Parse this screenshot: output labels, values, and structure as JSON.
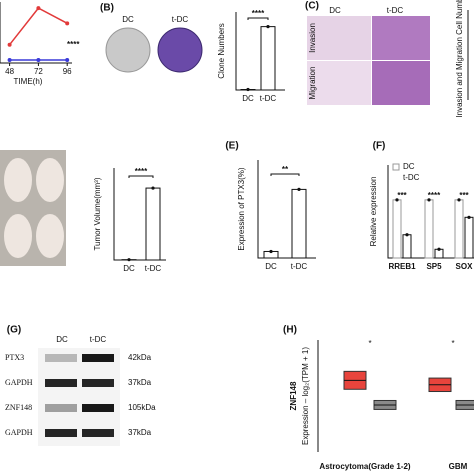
{
  "panel_a": {
    "type": "line",
    "x": [
      48,
      72,
      96
    ],
    "xlim": [
      40,
      100
    ],
    "xticks": [
      48,
      72,
      96
    ],
    "ylim": [
      0,
      2
    ],
    "xlabel": "TIME(h)",
    "significance": "****",
    "series": [
      {
        "color": "#e23a3a",
        "values": [
          0.6,
          1.8,
          1.3
        ]
      },
      {
        "color": "#3a3ad8",
        "values": [
          0.1,
          0.1,
          0.1
        ]
      }
    ]
  },
  "panel_b": {
    "label": "(B)",
    "image_labels": [
      "DC",
      "t-DC"
    ],
    "chart": {
      "type": "bar",
      "ylabel": "Clone Numbers",
      "categories": [
        "DC",
        "t-DC"
      ],
      "values": [
        1,
        130
      ],
      "ylim": [
        0,
        160
      ],
      "significance": "****"
    }
  },
  "panel_c": {
    "label": "(C)",
    "column_labels": [
      "DC",
      "t-DC"
    ],
    "row_labels": [
      "Invasion",
      "Migration"
    ],
    "ylabel": "Invasion and Migration Cell Numbers"
  },
  "panel_d": {
    "chart": {
      "type": "bar",
      "ylabel": "Tumor Volume(mm³)",
      "categories": [
        "DC",
        "t-DC"
      ],
      "values": [
        2,
        430
      ],
      "ylim": [
        0,
        550
      ],
      "significance": "****"
    }
  },
  "panel_e": {
    "label": "(E)",
    "chart": {
      "type": "bar",
      "ylabel": "Expression of PTX3(%)",
      "categories": [
        "DC",
        "t-DC"
      ],
      "values": [
        10,
        105
      ],
      "ylim": [
        0,
        150
      ],
      "significance": "**"
    }
  },
  "panel_f": {
    "label": "(F)",
    "chart": {
      "type": "grouped_bar",
      "ylabel": "Relative expression",
      "categories": [
        "RREB1",
        "SP5",
        "SOX"
      ],
      "series": [
        {
          "name": "DC",
          "color": "#ffffff",
          "values": [
            1,
            1,
            1
          ]
        },
        {
          "name": "t-DC",
          "color": "#ffffff",
          "values": [
            0.4,
            0.15,
            0.7
          ]
        }
      ],
      "ylim": [
        0,
        1.6
      ],
      "significance": [
        "***",
        "****",
        "***"
      ]
    }
  },
  "panel_g": {
    "label": "(G)",
    "columns": [
      "DC",
      "t-DC"
    ],
    "rows": [
      {
        "protein": "PTX3",
        "size": "42kDa"
      },
      {
        "protein": "GAPDH",
        "size": "37kDa"
      },
      {
        "protein": "ZNF148",
        "size": "105kDa"
      },
      {
        "protein": "GAPDH",
        "size": "37kDa"
      }
    ]
  },
  "panel_h": {
    "label": "(H)",
    "type": "box",
    "ylabel": "ZNF148",
    "axis_note": "Expression – log₂(TPM + 1)",
    "ylim": [
      0,
      5
    ],
    "groups": [
      "Astrocytoma(Grade 1-2)",
      "GBM"
    ],
    "significance": [
      "*",
      "*"
    ],
    "boxes": [
      {
        "color": "#e8443c",
        "q1": 2.8,
        "median": 3.2,
        "q3": 3.6
      },
      {
        "color": "#8a8a8a",
        "q1": 1.9,
        "median": 2.1,
        "q3": 2.3
      },
      {
        "color": "#e8443c",
        "q1": 2.7,
        "median": 3.0,
        "q3": 3.3
      },
      {
        "color": "#8a8a8a",
        "q1": 1.9,
        "median": 2.1,
        "q3": 2.3
      }
    ]
  }
}
